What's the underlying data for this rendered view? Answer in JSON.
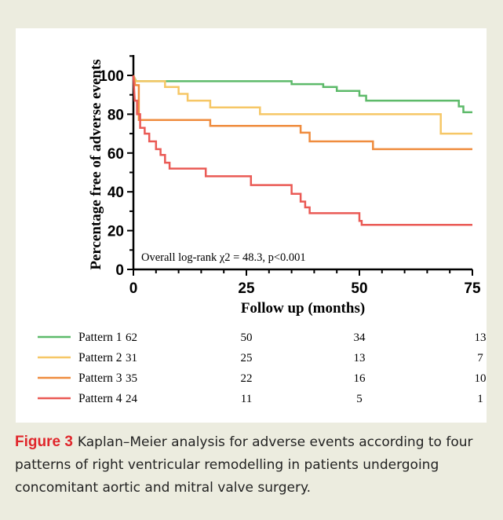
{
  "chart_data": {
    "type": "line",
    "subtype": "kaplan-meier step curves",
    "ylabel": "Percentage free of adverse events",
    "xlabel": "Follow up (months)",
    "xlim": [
      0,
      75
    ],
    "ylim": [
      0,
      100
    ],
    "x_ticks": [
      0,
      25,
      50,
      75
    ],
    "y_ticks": [
      0,
      20,
      40,
      60,
      80,
      100
    ],
    "grid": false,
    "annotation": "Overall log-rank χ2 = 48.3, p<0.001",
    "series": [
      {
        "name": "Pattern 1",
        "color": "#5dba6a",
        "points": [
          [
            0,
            100
          ],
          [
            0.6,
            97
          ],
          [
            35,
            97
          ],
          [
            35,
            95.5
          ],
          [
            42,
            95.5
          ],
          [
            42,
            94
          ],
          [
            45,
            94
          ],
          [
            45,
            92
          ],
          [
            50,
            92
          ],
          [
            50,
            89.5
          ],
          [
            51.5,
            89.5
          ],
          [
            51.5,
            87
          ],
          [
            72,
            87
          ],
          [
            72,
            84
          ],
          [
            73,
            84
          ],
          [
            73,
            81
          ],
          [
            75,
            81
          ]
        ],
        "at_risk": [
          62,
          50,
          34,
          13
        ]
      },
      {
        "name": "Pattern 2",
        "color": "#f6c766",
        "points": [
          [
            0,
            100
          ],
          [
            0.5,
            97
          ],
          [
            7,
            97
          ],
          [
            7,
            94
          ],
          [
            10,
            94
          ],
          [
            10,
            90.5
          ],
          [
            12,
            90.5
          ],
          [
            12,
            87
          ],
          [
            17,
            87
          ],
          [
            17,
            83.5
          ],
          [
            28,
            83.5
          ],
          [
            28,
            80
          ],
          [
            68,
            80
          ],
          [
            68,
            70
          ],
          [
            75,
            70
          ]
        ],
        "at_risk": [
          31,
          25,
          13,
          7
        ]
      },
      {
        "name": "Pattern 3",
        "color": "#ef8c3e",
        "points": [
          [
            0,
            100
          ],
          [
            0.4,
            95
          ],
          [
            1.2,
            95
          ],
          [
            1.2,
            77
          ],
          [
            17,
            77
          ],
          [
            17,
            74
          ],
          [
            37,
            74
          ],
          [
            37,
            70.5
          ],
          [
            39,
            70.5
          ],
          [
            39,
            66
          ],
          [
            48,
            66
          ],
          [
            48,
            66
          ],
          [
            53,
            66
          ],
          [
            53,
            62
          ],
          [
            75,
            62
          ]
        ],
        "at_risk": [
          35,
          22,
          16,
          10
        ]
      },
      {
        "name": "Pattern 4",
        "color": "#ea5a55",
        "points": [
          [
            0,
            100
          ],
          [
            0.3,
            87
          ],
          [
            0.8,
            87
          ],
          [
            0.8,
            80
          ],
          [
            1.5,
            80
          ],
          [
            1.5,
            73
          ],
          [
            2.5,
            73
          ],
          [
            2.5,
            70
          ],
          [
            3.5,
            70
          ],
          [
            3.5,
            66
          ],
          [
            5,
            66
          ],
          [
            5,
            62
          ],
          [
            6,
            62
          ],
          [
            6,
            59
          ],
          [
            7,
            59
          ],
          [
            7,
            55
          ],
          [
            8,
            55
          ],
          [
            8,
            52
          ],
          [
            16,
            52
          ],
          [
            16,
            48
          ],
          [
            26,
            48
          ],
          [
            26,
            43.5
          ],
          [
            35,
            43.5
          ],
          [
            35,
            39
          ],
          [
            37,
            39
          ],
          [
            37,
            35
          ],
          [
            38,
            35
          ],
          [
            38,
            32
          ],
          [
            39,
            32
          ],
          [
            39,
            29
          ],
          [
            50,
            29
          ],
          [
            50,
            25
          ],
          [
            50.5,
            25
          ],
          [
            50.5,
            23
          ],
          [
            75,
            23
          ]
        ],
        "at_risk": [
          24,
          11,
          5,
          1
        ]
      }
    ]
  },
  "caption": {
    "label": "Figure 3",
    "text": "Kaplan–Meier analysis for adverse events according to four patterns of right ventricular remodelling in patients undergoing concomitant aortic and mitral valve surgery."
  }
}
